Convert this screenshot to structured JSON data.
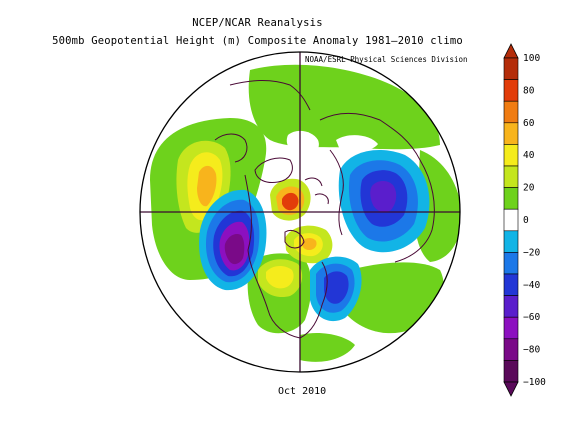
{
  "title_line1": "NCEP/NCAR Reanalysis",
  "title_line2": "500mb Geopotential Height (m) Composite Anomaly 1981–2010 climo",
  "credit": "NOAA/ESRL Physical Sciences Division",
  "date": "Oct 2010",
  "colorbar": {
    "labels": [
      "100",
      "80",
      "60",
      "40",
      "20",
      "0",
      "−20",
      "−40",
      "−60",
      "−80",
      "−100"
    ],
    "colors": [
      "#b42d0a",
      "#e23c0a",
      "#f07c12",
      "#f8b41c",
      "#f5ec1c",
      "#c4e61e",
      "#6ed21c",
      "#ffffff",
      "#12b4e6",
      "#1c78e8",
      "#2236d6",
      "#5a1ecc",
      "#8c10c0",
      "#7a0a88",
      "#5a0a5a"
    ]
  },
  "map_features": {
    "projection": "north-polar-stereographic",
    "anomaly_areas": [
      {
        "id": "w-pacific-positive",
        "sign": "positive",
        "peak": 40
      },
      {
        "id": "ne-pacific-negative",
        "sign": "negative",
        "peak": -100
      },
      {
        "id": "arctic-positive",
        "sign": "positive",
        "peak": 100
      },
      {
        "id": "north-america-positive",
        "sign": "positive",
        "peak": 40
      },
      {
        "id": "atlantic-negative",
        "sign": "negative",
        "peak": -60
      },
      {
        "id": "siberia-negative",
        "sign": "negative",
        "peak": -60
      }
    ]
  }
}
